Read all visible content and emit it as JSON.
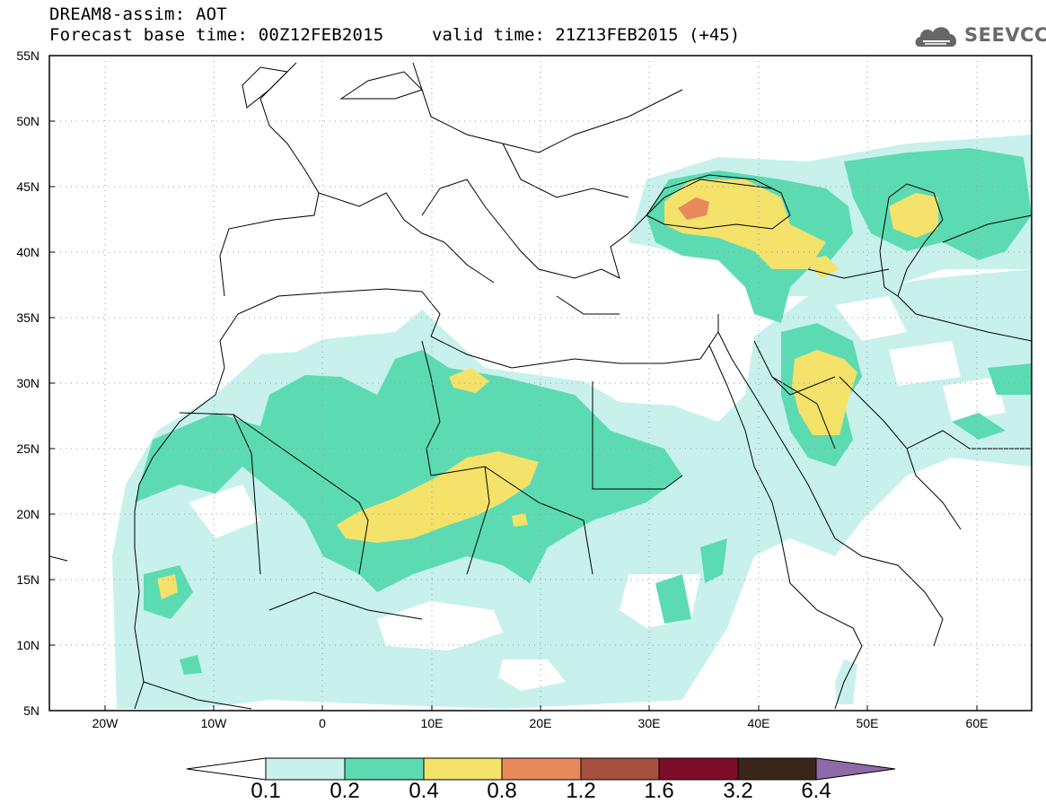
{
  "header": {
    "title_line1": "DREAM8-assim: AOT",
    "title_line2": "Forecast base time: 00Z12FEB2015",
    "valid_time": "valid time: 21Z13FEB2015 (+45)",
    "logo_text": "SEEVCCC"
  },
  "map": {
    "lat_labels": [
      "55N",
      "50N",
      "45N",
      "40N",
      "35N",
      "30N",
      "25N",
      "20N",
      "15N",
      "10N",
      "5N"
    ],
    "lon_labels": [
      "20W",
      "10W",
      "0",
      "10E",
      "20E",
      "30E",
      "40E",
      "50E",
      "60E"
    ]
  },
  "colorbar": {
    "labels": [
      "0.1",
      "0.2",
      "0.4",
      "0.8",
      "1.2",
      "1.6",
      "3.2",
      "6.4"
    ],
    "colors": [
      "#c8f1ec",
      "#5cdbb3",
      "#f4e26a",
      "#e8895c",
      "#a6503f",
      "#7e0d2a",
      "#3a2618",
      "#8e6aa8"
    ]
  },
  "colors": {
    "level1": "#c8f1ec",
    "level2": "#5cdbb3",
    "level3": "#f4e26a",
    "level4": "#e8895c",
    "border": "#000000"
  }
}
